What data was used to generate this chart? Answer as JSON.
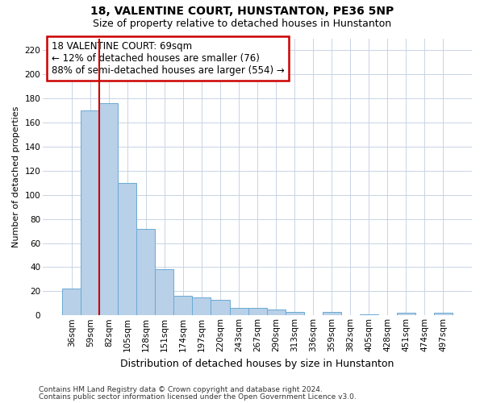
{
  "title": "18, VALENTINE COURT, HUNSTANTON, PE36 5NP",
  "subtitle": "Size of property relative to detached houses in Hunstanton",
  "xlabel": "Distribution of detached houses by size in Hunstanton",
  "ylabel": "Number of detached properties",
  "footnote1": "Contains HM Land Registry data © Crown copyright and database right 2024.",
  "footnote2": "Contains public sector information licensed under the Open Government Licence v3.0.",
  "categories": [
    "36sqm",
    "59sqm",
    "82sqm",
    "105sqm",
    "128sqm",
    "151sqm",
    "174sqm",
    "197sqm",
    "220sqm",
    "243sqm",
    "267sqm",
    "290sqm",
    "313sqm",
    "336sqm",
    "359sqm",
    "382sqm",
    "405sqm",
    "428sqm",
    "451sqm",
    "474sqm",
    "497sqm"
  ],
  "values": [
    22,
    170,
    176,
    110,
    72,
    38,
    16,
    15,
    13,
    6,
    6,
    5,
    3,
    0,
    3,
    0,
    1,
    0,
    2,
    0,
    2
  ],
  "bar_color": "#b8d0e8",
  "bar_edge_color": "#6aaad4",
  "grid_color": "#c8d4e4",
  "background_color": "#ffffff",
  "vline_color": "#cc0000",
  "vline_pos": 1.5,
  "annotation_text": "18 VALENTINE COURT: 69sqm\n← 12% of detached houses are smaller (76)\n88% of semi-detached houses are larger (554) →",
  "annotation_box_color": "#ffffff",
  "annotation_box_edge": "#cc0000",
  "ylim": [
    0,
    230
  ],
  "yticks": [
    0,
    20,
    40,
    60,
    80,
    100,
    120,
    140,
    160,
    180,
    200,
    220
  ],
  "title_fontsize": 10,
  "subtitle_fontsize": 9,
  "ylabel_fontsize": 8,
  "xlabel_fontsize": 9,
  "tick_fontsize": 7.5,
  "footnote_fontsize": 6.5
}
